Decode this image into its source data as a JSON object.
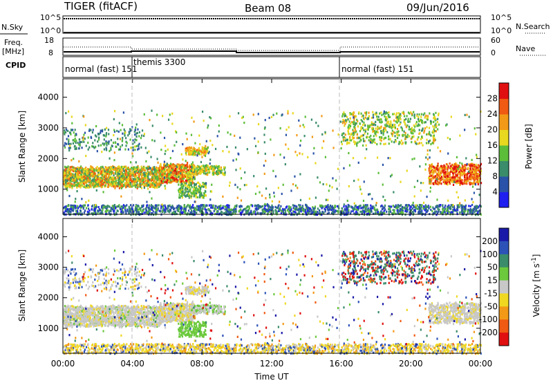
{
  "header": {
    "radar": "TIGER (fitACF)",
    "beam": "Beam 08",
    "date": "09/Jun/2016"
  },
  "nsky_panel": {
    "label": "N.Sky",
    "ticks": [
      "10^5",
      "10^0"
    ],
    "right_label": "N.Search",
    "right_ticks": [
      "10^5",
      "10^0"
    ]
  },
  "freq_panel": {
    "label_line1": "Freq.",
    "label_line2": "[MHz]",
    "ticks": [
      "18",
      "8"
    ],
    "right_label": "Nave",
    "right_ticks": [
      "60",
      "0"
    ]
  },
  "cpid_panel": {
    "label": "CPID",
    "segments": [
      {
        "name": "normal (fast) 151",
        "start_hour": 0
      },
      {
        "name": "themis 3300",
        "start_hour": 4
      },
      {
        "name": "normal (fast) 151",
        "start_hour": 16
      }
    ]
  },
  "chart_data": [
    {
      "type": "heatmap",
      "parameter": "Power",
      "ylabel": "Slant Range [km]",
      "xlim": [
        0,
        24
      ],
      "ylim": [
        180,
        4600
      ],
      "y_ticks": [
        1000,
        2000,
        3000,
        4000
      ],
      "colorbar": {
        "label": "Power [dB]",
        "ticks": [
          4,
          8,
          12,
          16,
          20,
          24,
          28
        ],
        "colors": [
          "#1f1ff0",
          "#2a52a8",
          "#3a8c6a",
          "#5cbd3a",
          "#e8d81f",
          "#f29a17",
          "#f05a12",
          "#e01010"
        ],
        "range": [
          0,
          32
        ]
      }
    },
    {
      "type": "heatmap",
      "parameter": "Velocity",
      "ylabel": "Slant Range [km]",
      "xlabel": "Time UT",
      "xlim": [
        0,
        24
      ],
      "ylim": [
        180,
        4600
      ],
      "x_ticks": [
        "00:00",
        "04:00",
        "08:00",
        "12:00",
        "16:00",
        "20:00",
        "00:00"
      ],
      "y_ticks": [
        1000,
        2000,
        3000,
        4000
      ],
      "colorbar": {
        "label": "Velocity [m s^-1]",
        "ticks": [
          "200",
          "100",
          "50",
          "15",
          "-15",
          "-50",
          "-100",
          "-200"
        ],
        "colors": [
          "#1a1aa8",
          "#2c52b8",
          "#3a8c6a",
          "#6cc93c",
          "#c8c8c8",
          "#f0d820",
          "#f29a17",
          "#f05a12",
          "#e01010"
        ]
      }
    }
  ]
}
